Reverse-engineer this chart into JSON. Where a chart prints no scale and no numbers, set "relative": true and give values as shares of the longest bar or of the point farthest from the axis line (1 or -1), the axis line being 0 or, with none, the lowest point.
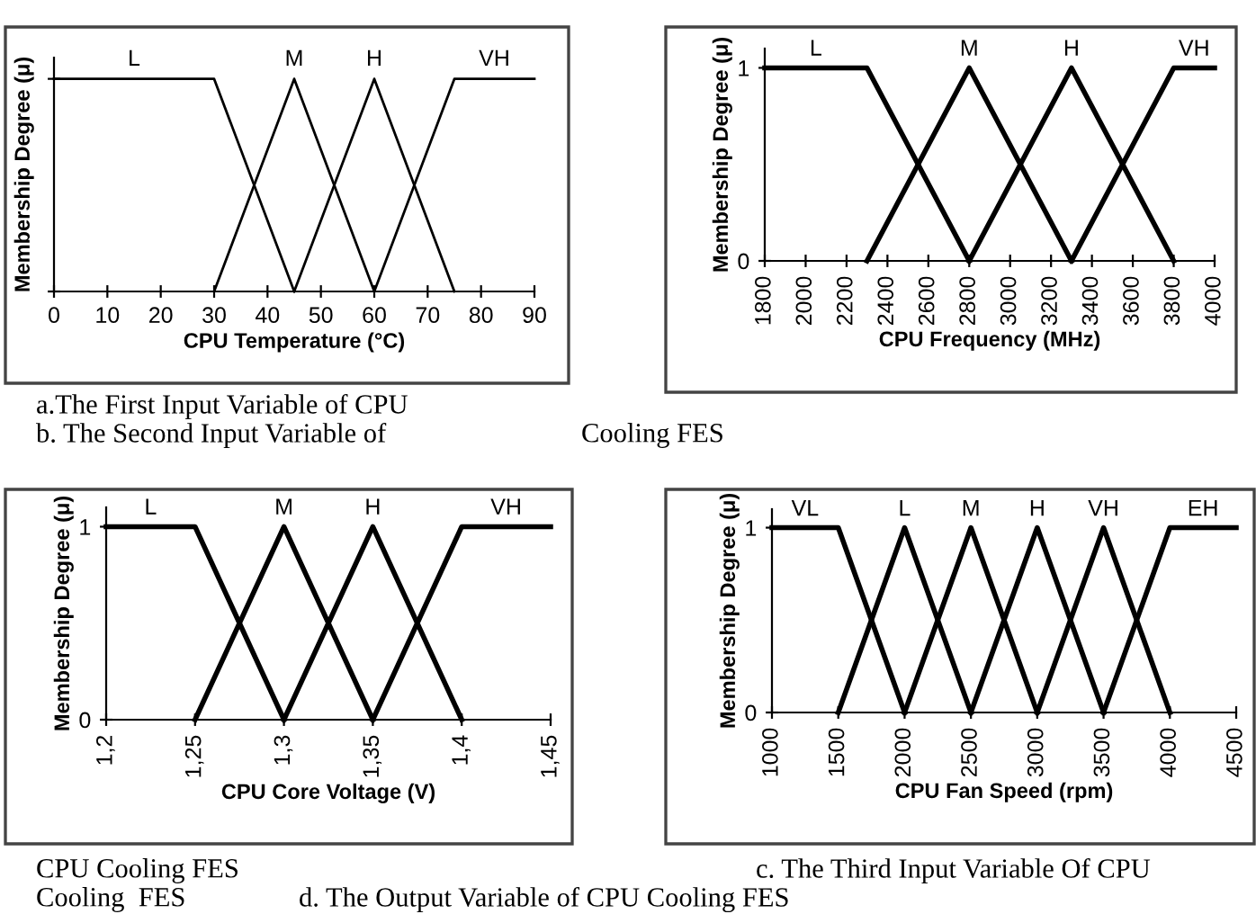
{
  "chart_data": [
    {
      "type": "line",
      "relative": true,
      "xlabel": "CPU Temperature (°C)",
      "ylabel": "Membership Degree (μ)",
      "xlim": [
        0,
        90
      ],
      "xticks": [
        0,
        10,
        20,
        30,
        40,
        50,
        60,
        70,
        80,
        90
      ],
      "grid": false,
      "legend": false,
      "marker": "none",
      "line_style": "solid",
      "annotations": [
        "a.The First Input Variable of CPU",
        "b. The Second Input Variable of",
        "Cooling FES"
      ],
      "series": [
        {
          "name": "L",
          "color": "#000000",
          "x": [
            0,
            30,
            45
          ],
          "values": [
            1,
            1,
            0
          ]
        },
        {
          "name": "M",
          "color": "#000000",
          "x": [
            30,
            45,
            60
          ],
          "values": [
            0,
            1,
            0
          ]
        },
        {
          "name": "H",
          "color": "#000000",
          "x": [
            45,
            60,
            75
          ],
          "values": [
            0,
            1,
            0
          ]
        },
        {
          "name": "VH",
          "color": "#000000",
          "x": [
            60,
            75,
            90
          ],
          "values": [
            0,
            1,
            1
          ]
        }
      ]
    },
    {
      "type": "line",
      "xlabel": "CPU Frequency (MHz)",
      "ylabel": "Membership Degree (μ)",
      "xlim": [
        1800,
        4000
      ],
      "xticks": [
        1800,
        2000,
        2200,
        2400,
        2600,
        2800,
        3000,
        3200,
        3400,
        3600,
        3800,
        4000
      ],
      "ylim": [
        0,
        1.1
      ],
      "yticks": [
        0,
        1
      ],
      "grid": false,
      "legend": false,
      "marker": "none",
      "line_style": "solid",
      "series": [
        {
          "name": "L",
          "color": "#000000",
          "x": [
            1800,
            2300,
            2800
          ],
          "values": [
            1,
            1,
            0
          ]
        },
        {
          "name": "M",
          "color": "#000000",
          "x": [
            2300,
            2800,
            3300
          ],
          "values": [
            0,
            1,
            0
          ]
        },
        {
          "name": "H",
          "color": "#000000",
          "x": [
            2800,
            3300,
            3800
          ],
          "values": [
            0,
            1,
            0
          ]
        },
        {
          "name": "VH",
          "color": "#000000",
          "x": [
            3300,
            3800,
            4000
          ],
          "values": [
            0,
            1,
            1
          ]
        }
      ]
    },
    {
      "type": "line",
      "xlabel": "CPU Core Voltage (V)",
      "ylabel": "Membership Degree (μ)",
      "xlim": [
        1.2,
        1.45
      ],
      "xticks": [
        {
          "value": 1.2,
          "label": "1,2"
        },
        {
          "value": 1.25,
          "label": "1,25"
        },
        {
          "value": 1.3,
          "label": "1,3"
        },
        {
          "value": 1.35,
          "label": "1,35"
        },
        {
          "value": 1.4,
          "label": "1,4"
        },
        {
          "value": 1.45,
          "label": "1,45"
        }
      ],
      "ylim": [
        0,
        1.1
      ],
      "yticks": [
        0,
        1
      ],
      "grid": false,
      "legend": false,
      "marker": "none",
      "line_style": "solid",
      "annotations": [
        "CPU Cooling FES",
        "Cooling  FES",
        "d. The Output Variable of CPU Cooling FES"
      ],
      "series": [
        {
          "name": "L",
          "color": "#000000",
          "x": [
            1.2,
            1.25,
            1.3
          ],
          "values": [
            1,
            1,
            0
          ]
        },
        {
          "name": "M",
          "color": "#000000",
          "x": [
            1.25,
            1.3,
            1.35
          ],
          "values": [
            0,
            1,
            0
          ]
        },
        {
          "name": "H",
          "color": "#000000",
          "x": [
            1.3,
            1.35,
            1.4
          ],
          "values": [
            0,
            1,
            0
          ]
        },
        {
          "name": "VH",
          "color": "#000000",
          "x": [
            1.35,
            1.4,
            1.45
          ],
          "values": [
            0,
            1,
            1
          ]
        }
      ]
    },
    {
      "type": "line",
      "xlabel": "CPU Fan Speed (rpm)",
      "ylabel": "Membership Degree (μ)",
      "xlim": [
        1000,
        4500
      ],
      "xticks": [
        1000,
        1500,
        2000,
        2500,
        3000,
        3500,
        4000,
        4500
      ],
      "ylim": [
        0,
        1.1
      ],
      "yticks": [
        0,
        1
      ],
      "grid": false,
      "legend": false,
      "marker": "none",
      "line_style": "solid",
      "annotations": [
        "c. The Third Input Variable Of CPU"
      ],
      "series": [
        {
          "name": "VL",
          "color": "#000000",
          "x": [
            1000,
            1500,
            2000
          ],
          "values": [
            1,
            1,
            0
          ]
        },
        {
          "name": "L",
          "color": "#000000",
          "x": [
            1500,
            2000,
            2500
          ],
          "values": [
            0,
            1,
            0
          ]
        },
        {
          "name": "M",
          "color": "#000000",
          "x": [
            2000,
            2500,
            3000
          ],
          "values": [
            0,
            1,
            0
          ]
        },
        {
          "name": "H",
          "color": "#000000",
          "x": [
            2500,
            3000,
            3500
          ],
          "values": [
            0,
            1,
            0
          ]
        },
        {
          "name": "VH",
          "color": "#000000",
          "x": [
            3000,
            3500,
            4000
          ],
          "values": [
            0,
            1,
            0
          ]
        },
        {
          "name": "EH",
          "color": "#000000",
          "x": [
            3500,
            4000,
            4500
          ],
          "values": [
            0,
            1,
            1
          ]
        }
      ]
    }
  ]
}
